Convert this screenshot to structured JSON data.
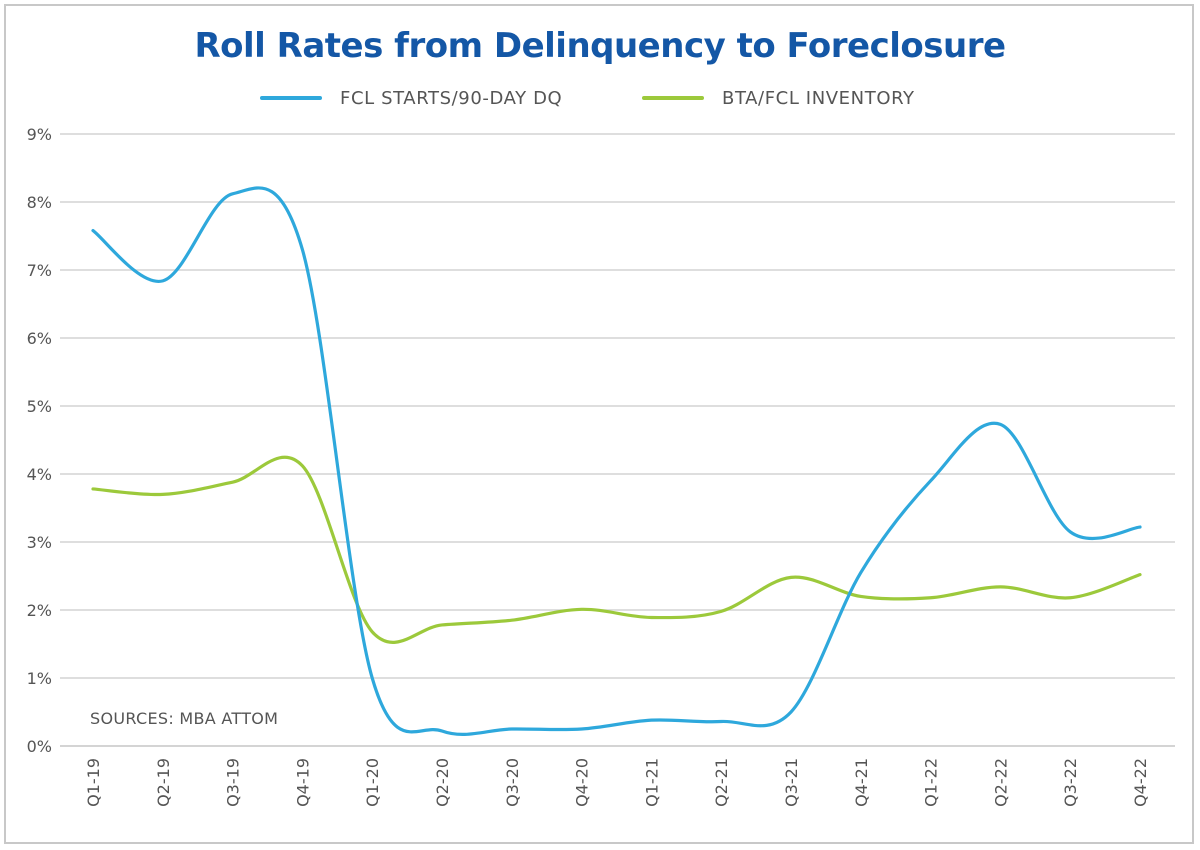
{
  "chart_data": {
    "type": "line",
    "title": "Roll Rates from Delinquency to Foreclosure",
    "categories": [
      "Q1-19",
      "Q2-19",
      "Q3-19",
      "Q4-19",
      "Q1-20",
      "Q2-20",
      "Q3-20",
      "Q4-20",
      "Q1-21",
      "Q2-21",
      "Q3-21",
      "Q4-21",
      "Q1-22",
      "Q2-22",
      "Q3-22",
      "Q4-22"
    ],
    "y_ticks": [
      "0%",
      "1%",
      "2%",
      "3%",
      "4%",
      "5%",
      "6%",
      "7%",
      "8%",
      "9%"
    ],
    "ylim": [
      0,
      9
    ],
    "y_unit": "%",
    "grid": true,
    "legend_position": "top",
    "series": [
      {
        "name": "FCL STARTS/90-DAY DQ",
        "color": "#2ea8dc",
        "values": [
          7.58,
          6.84,
          8.12,
          7.3,
          1.0,
          0.22,
          0.25,
          0.25,
          0.38,
          0.36,
          0.5,
          2.55,
          3.9,
          4.73,
          3.15,
          3.22
        ]
      },
      {
        "name": "BTA/FCL INVENTORY",
        "color": "#9cc93b",
        "values": [
          3.78,
          3.7,
          3.88,
          4.12,
          1.68,
          1.78,
          1.85,
          2.01,
          1.89,
          1.98,
          2.48,
          2.2,
          2.18,
          2.34,
          2.18,
          2.52
        ]
      }
    ],
    "source_note": "SOURCES: MBA ATTOM"
  }
}
